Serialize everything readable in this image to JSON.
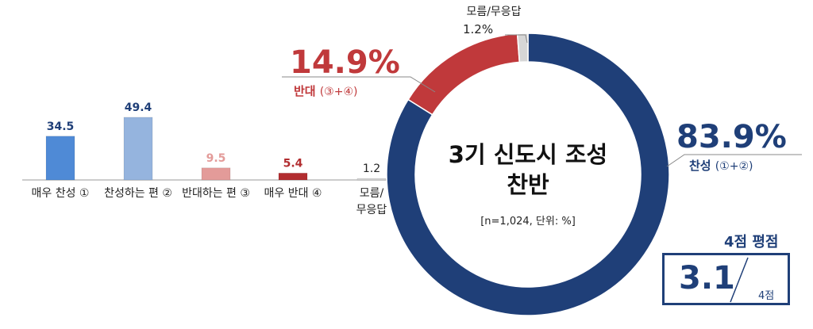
{
  "colors": {
    "agree": "#1f3f78",
    "oppose": "#c0393b",
    "dont_know": "#d6d6d6",
    "strong_agree": "#4f8ad6",
    "somewhat_agree": "#95b4de",
    "somewhat_oppose": "#e39b99",
    "strong_oppose": "#b22d30",
    "dont_know_bar": "#d6d6d6"
  },
  "chart_data": [
    {
      "type": "bar",
      "categories": [
        "매우 찬성 ①",
        "찬성하는 편 ②",
        "반대하는 편 ③",
        "매우 반대 ④",
        "모름/무응답"
      ],
      "values": [
        34.5,
        49.4,
        9.5,
        5.4,
        1.2
      ],
      "value_labels": [
        "34.5",
        "49.4",
        "9.5",
        "5.4",
        "1.2"
      ],
      "value_label_colors": [
        "#1f3f78",
        "#1f3f78",
        "#e39b99",
        "#b22d30",
        "#222222"
      ],
      "bar_colors": [
        "#4f8ad6",
        "#95b4de",
        "#e39b99",
        "#b22d30",
        "#d6d6d6"
      ]
    },
    {
      "type": "pie",
      "title": "3기 신도시 조성 찬반",
      "note": "[n=1,024, 단위: %]",
      "slices": [
        {
          "label": "찬성",
          "sub_label": "(①+②)",
          "value": 83.9,
          "display": "83.9%",
          "color": "#1f3f78"
        },
        {
          "label": "반대",
          "sub_label": "(③+④)",
          "value": 14.9,
          "display": "14.9%",
          "color": "#c0393b"
        },
        {
          "label": "모름/무응답",
          "value": 1.2,
          "display": "1.2%",
          "color": "#d6d6d6"
        }
      ]
    }
  ],
  "average": {
    "title": "4점 평점",
    "value": "3.1",
    "max_label": "4점"
  }
}
